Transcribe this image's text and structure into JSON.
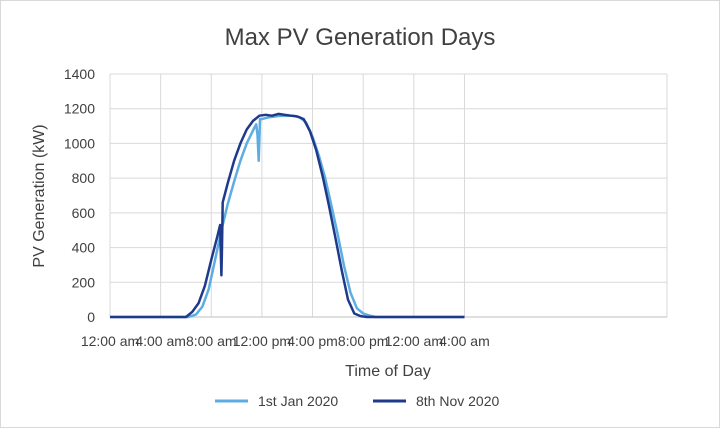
{
  "chart_data": {
    "type": "line",
    "title": "Max PV Generation Days",
    "xlabel": "Time of Day",
    "ylabel": "PV Generation (kW)",
    "x_unit": "hours since 12:00 am of the day",
    "xlim": [
      0,
      44
    ],
    "ylim": [
      0,
      1400
    ],
    "yticks": [
      0,
      200,
      400,
      600,
      800,
      1000,
      1200,
      1400
    ],
    "xticks": [
      {
        "value": 0,
        "label": "12:00 am"
      },
      {
        "value": 4,
        "label": "4:00 am"
      },
      {
        "value": 8,
        "label": "8:00 am"
      },
      {
        "value": 12,
        "label": "12:00 pm"
      },
      {
        "value": 16,
        "label": "4:00 pm"
      },
      {
        "value": 20,
        "label": "8:00 pm"
      },
      {
        "value": 24,
        "label": "12:00 am"
      },
      {
        "value": 28,
        "label": "4:00 am"
      }
    ],
    "grid": true,
    "legend_position": "bottom",
    "series": [
      {
        "name": "1st Jan 2020",
        "color": "#5dade2",
        "x": [
          0,
          6.2,
          6.8,
          7.3,
          7.8,
          8.3,
          8.8,
          9.3,
          9.8,
          10.3,
          10.8,
          11.2,
          11.4,
          11.55,
          11.65,
          11.75,
          11.85,
          12.0,
          12.5,
          13.0,
          13.5,
          14.0,
          14.5,
          15.0,
          15.5,
          16.0,
          16.5,
          17.0,
          17.5,
          18.0,
          18.5,
          19.0,
          19.5,
          20.0,
          20.5,
          21.0,
          21.2,
          28
        ],
        "y": [
          0,
          0,
          15,
          60,
          160,
          330,
          500,
          650,
          780,
          900,
          1000,
          1060,
          1090,
          1110,
          1050,
          900,
          1140,
          1140,
          1150,
          1155,
          1160,
          1160,
          1160,
          1150,
          1120,
          1040,
          930,
          800,
          640,
          470,
          290,
          140,
          50,
          20,
          8,
          0,
          0,
          0
        ]
      },
      {
        "name": "8th Nov 2020",
        "color": "#1f3a8a",
        "x": [
          0,
          6.0,
          6.5,
          7.0,
          7.5,
          8.0,
          8.5,
          8.7,
          8.8,
          8.85,
          8.9,
          9.3,
          9.8,
          10.3,
          10.8,
          11.3,
          11.8,
          12.3,
          12.8,
          13.3,
          13.8,
          14.3,
          14.8,
          15.3,
          15.8,
          16.3,
          16.8,
          17.3,
          17.8,
          18.3,
          18.8,
          19.3,
          19.8,
          20.3,
          20.6,
          28
        ],
        "y": [
          0,
          0,
          30,
          80,
          180,
          330,
          470,
          530,
          240,
          400,
          660,
          770,
          900,
          1000,
          1080,
          1130,
          1160,
          1165,
          1160,
          1170,
          1165,
          1160,
          1155,
          1140,
          1070,
          960,
          810,
          640,
          460,
          270,
          100,
          20,
          5,
          0,
          0,
          0
        ]
      }
    ]
  }
}
